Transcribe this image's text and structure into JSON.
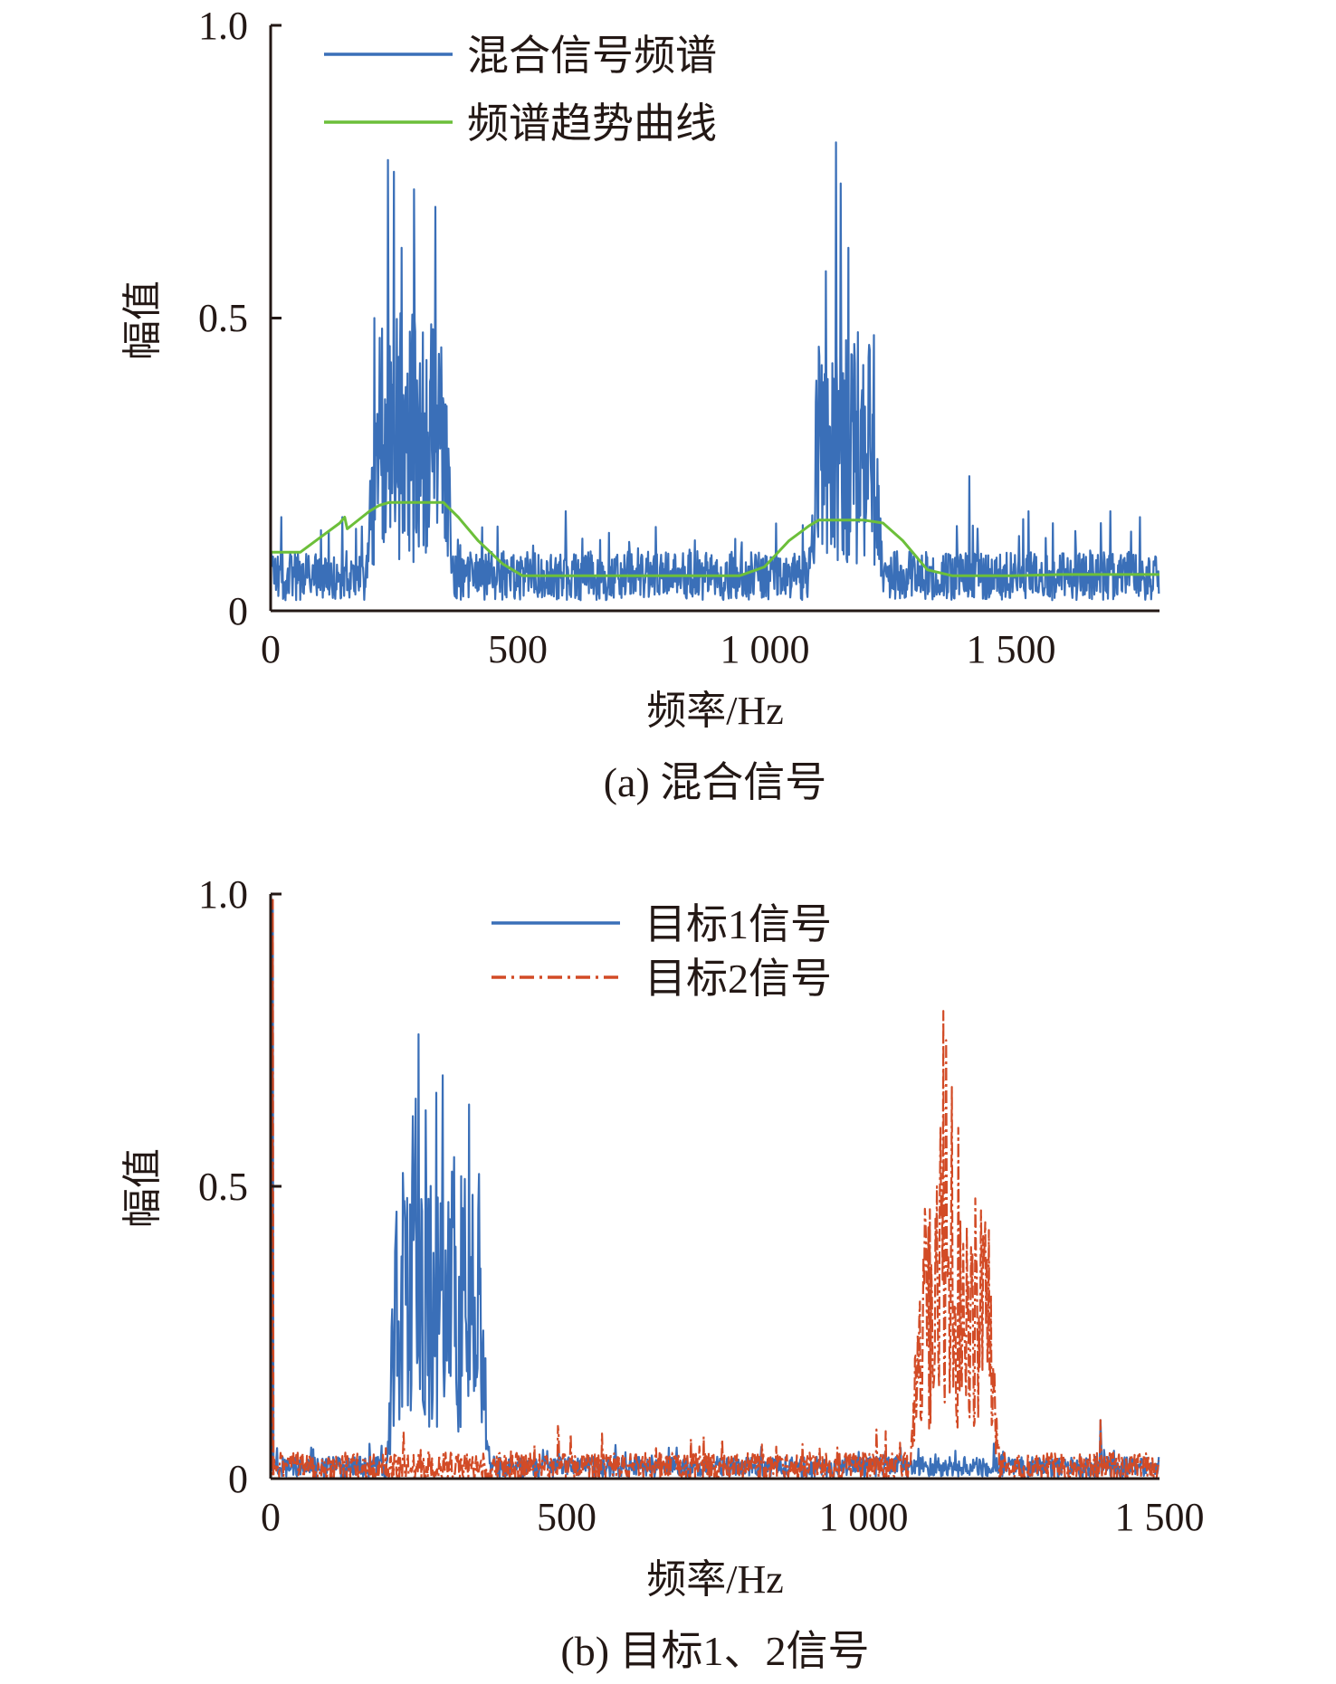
{
  "colors": {
    "axis": "#231815",
    "blue": "#3a6fb8",
    "green": "#6cbf3a",
    "red": "#d24b26"
  },
  "chart_data": [
    {
      "type": "line",
      "caption": "(a) 混合信号",
      "xlabel": "频率/Hz",
      "ylabel": "幅值",
      "xlim": [
        0,
        1800
      ],
      "ylim": [
        0,
        1.0
      ],
      "xticks": [
        0,
        500,
        1000,
        1500
      ],
      "xtick_labels": [
        "0",
        "500",
        "1 000",
        "1 500"
      ],
      "yticks": [
        0,
        0.5,
        1.0
      ],
      "ytick_labels": [
        "0",
        "0.5",
        "1.0"
      ],
      "legend_position": "top-left",
      "series": [
        {
          "name": "混合信号频谱",
          "color": "#3a6fb8",
          "style": "solid",
          "noise_x_range": [
            0,
            1800
          ],
          "noise_baseline": 0.06,
          "noise_amplitude": 0.06,
          "bands": [
            {
              "from": 195,
              "to": 370,
              "level": 0.32,
              "peaks": [
                [
                  210,
                  0.5
                ],
                [
                  238,
                  0.77
                ],
                [
                  250,
                  0.75
                ],
                [
                  265,
                  0.62
                ],
                [
                  290,
                  0.72
                ],
                [
                  333,
                  0.69
                ],
                [
                  345,
                  0.45
                ]
              ]
            },
            {
              "from": 1090,
              "to": 1240,
              "level": 0.3,
              "peaks": [
                [
                  1125,
                  0.58
                ],
                [
                  1145,
                  0.8
                ],
                [
                  1155,
                  0.73
                ],
                [
                  1170,
                  0.62
                ],
                [
                  1200,
                  0.42
                ],
                [
                  1215,
                  0.28
                ]
              ]
            }
          ],
          "outliers": [
            [
              22,
              0.16
            ],
            [
              145,
              0.16
            ],
            [
              598,
              0.17
            ],
            [
              1415,
              0.23
            ],
            [
              1535,
              0.17
            ],
            [
              1700,
              0.17
            ],
            [
              1760,
              0.16
            ]
          ]
        },
        {
          "name": "频谱趋势曲线",
          "color": "#6cbf3a",
          "style": "solid",
          "x": [
            0,
            30,
            60,
            100,
            140,
            150,
            155,
            170,
            200,
            220,
            240,
            280,
            320,
            350,
            380,
            420,
            470,
            510,
            560,
            700,
            850,
            950,
            1000,
            1050,
            1090,
            1110,
            1150,
            1200,
            1240,
            1280,
            1330,
            1380,
            1500,
            1600,
            1800
          ],
          "y": [
            0.1,
            0.1,
            0.1,
            0.125,
            0.15,
            0.16,
            0.14,
            0.15,
            0.17,
            0.18,
            0.185,
            0.185,
            0.185,
            0.185,
            0.16,
            0.12,
            0.08,
            0.06,
            0.06,
            0.06,
            0.06,
            0.06,
            0.075,
            0.12,
            0.145,
            0.155,
            0.155,
            0.155,
            0.15,
            0.12,
            0.07,
            0.06,
            0.06,
            0.062,
            0.062
          ]
        }
      ]
    },
    {
      "type": "line",
      "caption": "(b) 目标1、2信号",
      "xlabel": "频率/Hz",
      "ylabel": "幅值",
      "xlim": [
        0,
        1500
      ],
      "ylim": [
        0,
        1.0
      ],
      "xticks": [
        0,
        500,
        1000,
        1500
      ],
      "xtick_labels": [
        "0",
        "500",
        "1 000",
        "1 500"
      ],
      "yticks": [
        0,
        0.5,
        1.0
      ],
      "ytick_labels": [
        "0",
        "0.5",
        "1.0"
      ],
      "legend_position": "top-center",
      "series": [
        {
          "name": "目标1信号",
          "color": "#3a6fb8",
          "style": "solid",
          "noise_x_range": [
            0,
            1500
          ],
          "noise_baseline": 0.02,
          "noise_amplitude": 0.025,
          "bands": [
            {
              "from": 195,
              "to": 370,
              "level": 0.33,
              "peaks": [
                [
                  230,
                  0.48
                ],
                [
                  240,
                  0.62
                ],
                [
                  245,
                  0.65
                ],
                [
                  250,
                  0.76
                ],
                [
                  262,
                  0.63
                ],
                [
                  280,
                  0.66
                ],
                [
                  290,
                  0.69
                ],
                [
                  310,
                  0.55
                ],
                [
                  335,
                  0.64
                ],
                [
                  350,
                  0.46
                ]
              ]
            }
          ],
          "outliers": [
            [
              3,
              0.99
            ],
            [
              1400,
              0.1
            ]
          ]
        },
        {
          "name": "目标2信号",
          "color": "#d24b26",
          "style": "dashdot",
          "noise_x_range": [
            0,
            1500
          ],
          "noise_baseline": 0.02,
          "noise_amplitude": 0.035,
          "bands": [
            {
              "from": 1080,
              "to": 1230,
              "level": 0.3,
              "peaks": [
                [
                  1125,
                  0.5
                ],
                [
                  1130,
                  0.6
                ],
                [
                  1135,
                  0.8
                ],
                [
                  1140,
                  0.75
                ],
                [
                  1150,
                  0.67
                ],
                [
                  1160,
                  0.6
                ],
                [
                  1175,
                  0.43
                ],
                [
                  1190,
                  0.38
                ],
                [
                  1200,
                  0.35
                ],
                [
                  1210,
                  0.2
                ]
              ]
            }
          ],
          "outliers": [
            [
              3,
              0.99
            ],
            [
              485,
              0.09
            ],
            [
              1400,
              0.1
            ]
          ]
        }
      ]
    }
  ]
}
